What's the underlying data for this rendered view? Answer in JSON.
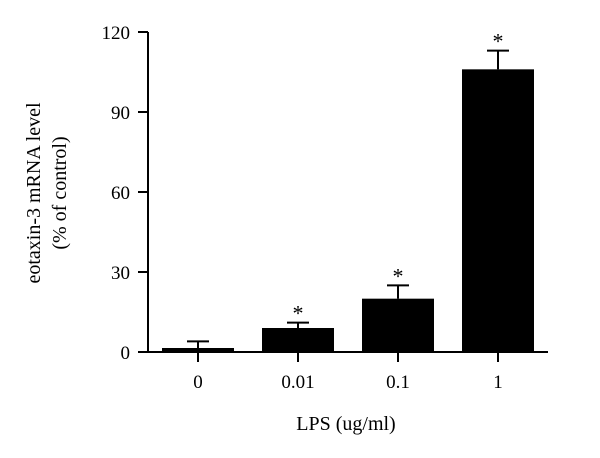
{
  "chart_data": {
    "type": "bar",
    "title": "",
    "xlabel": "LPS (ug/ml)",
    "ylabel_lines": [
      "eotaxin-3 mRNA level",
      "(% of control)"
    ],
    "categories": [
      "0",
      "0.01",
      "0.1",
      "1"
    ],
    "values": [
      1.5,
      9,
      20,
      106
    ],
    "error": [
      2.5,
      2,
      5,
      7
    ],
    "significance": [
      "",
      "*",
      "*",
      "*"
    ],
    "ylim": [
      0,
      120
    ],
    "yticks": [
      0,
      30,
      60,
      90,
      120
    ],
    "ytick_labels": [
      "0",
      "30",
      "60",
      "90",
      "120"
    ],
    "grid": false,
    "bar_color": "#000000"
  }
}
